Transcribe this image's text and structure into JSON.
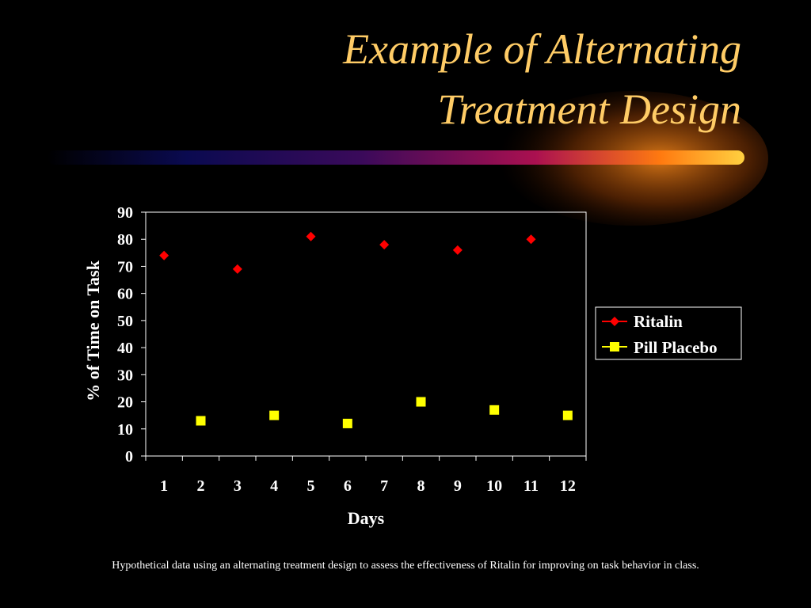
{
  "slide": {
    "title_line1": "Example of Alternating",
    "title_line2": "Treatment Design",
    "caption": "Hypothetical data using an alternating treatment design  to assess the effectiveness of Ritalin for improving on task behavior in class."
  },
  "colors": {
    "title": "#FFCC66",
    "ritalin": "#FF0000",
    "placebo": "#FFFF00",
    "axis": "#FFFFFF",
    "background": "#000000"
  },
  "chart_data": {
    "type": "scatter",
    "title": "",
    "xlabel": "Days",
    "ylabel": "% of Time on Task",
    "x_ticks": [
      "1",
      "2",
      "3",
      "4",
      "5",
      "6",
      "7",
      "8",
      "9",
      "10",
      "11",
      "12"
    ],
    "y_ticks": [
      "0",
      "10",
      "20",
      "30",
      "40",
      "50",
      "60",
      "70",
      "80",
      "90"
    ],
    "ylim": [
      0,
      90
    ],
    "xlim": [
      1,
      12
    ],
    "grid": false,
    "legend_position": "right",
    "series": [
      {
        "name": "Ritalin",
        "marker": "diamond",
        "color": "#FF0000",
        "points": [
          {
            "x": 1,
            "y": 74
          },
          {
            "x": 3,
            "y": 69
          },
          {
            "x": 5,
            "y": 81
          },
          {
            "x": 7,
            "y": 78
          },
          {
            "x": 9,
            "y": 76
          },
          {
            "x": 11,
            "y": 80
          }
        ]
      },
      {
        "name": "Pill Placebo",
        "marker": "square",
        "color": "#FFFF00",
        "points": [
          {
            "x": 2,
            "y": 13
          },
          {
            "x": 4,
            "y": 15
          },
          {
            "x": 6,
            "y": 12
          },
          {
            "x": 8,
            "y": 20
          },
          {
            "x": 10,
            "y": 17
          },
          {
            "x": 12,
            "y": 15
          }
        ]
      }
    ]
  }
}
